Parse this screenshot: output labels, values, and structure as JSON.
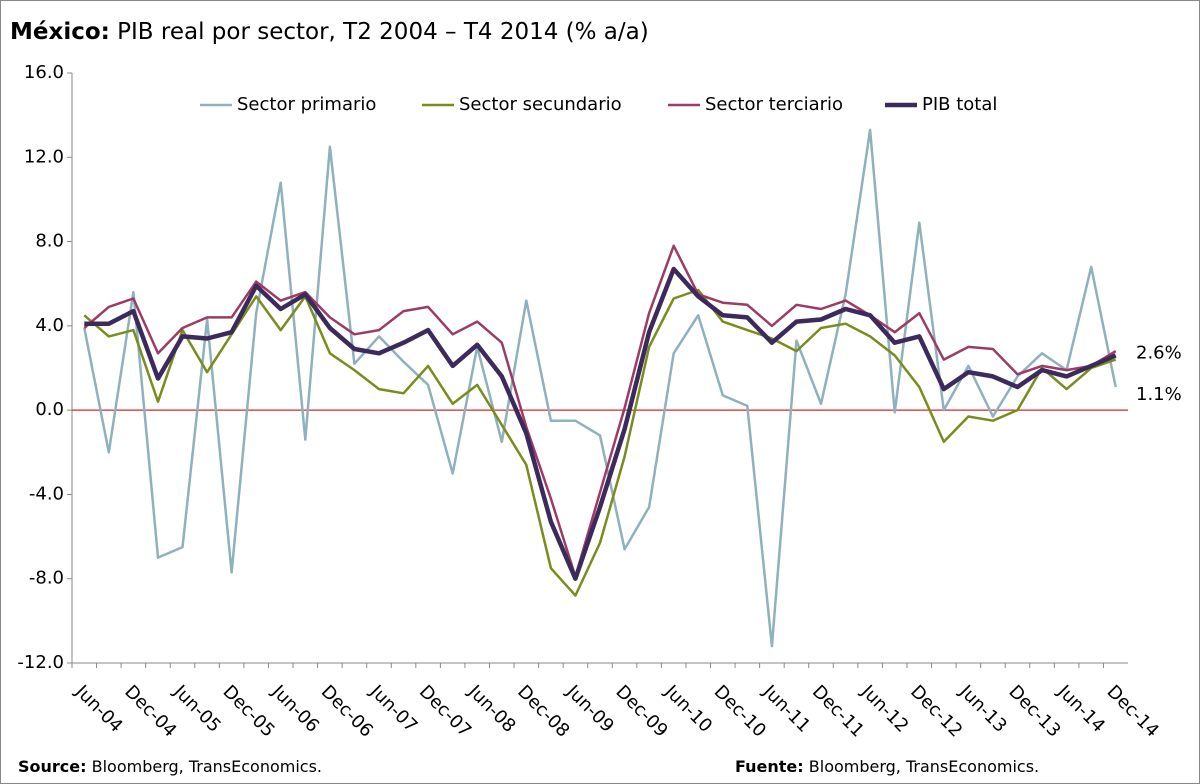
{
  "chart_data": {
    "type": "line",
    "title_prefix": "México:",
    "title": "PIB real por sector, T2 2004 – T4 2014 (% a/a)",
    "categories": [
      "Jun-04",
      null,
      "Dec-04",
      null,
      "Jun-05",
      null,
      "Dec-05",
      null,
      "Jun-06",
      null,
      "Dec-06",
      null,
      "Jun-07",
      null,
      "Dec-07",
      null,
      "Jun-08",
      null,
      "Dec-08",
      null,
      "Jun-09",
      null,
      "Dec-09",
      null,
      "Jun-10",
      null,
      "Dec-10",
      null,
      "Jun-11",
      null,
      "Dec-11",
      null,
      "Jun-12",
      null,
      "Dec-12",
      null,
      "Jun-13",
      null,
      "Dec-13",
      null,
      "Jun-14",
      null,
      "Dec-14"
    ],
    "series": [
      {
        "name": "Sector primario",
        "color": "#8fb1bd",
        "width": 2.5,
        "values": [
          3.9,
          -2.0,
          5.6,
          -7.0,
          -6.5,
          4.3,
          -7.7,
          4.6,
          10.8,
          -1.4,
          12.5,
          2.2,
          3.5,
          2.3,
          1.2,
          -3.0,
          3.0,
          -1.5,
          5.2,
          -0.5,
          -0.5,
          -1.2,
          -6.6,
          -4.6,
          2.7,
          4.5,
          0.7,
          0.2,
          -11.2,
          3.3,
          0.3,
          5.5,
          13.3,
          -0.1,
          8.9,
          0.0,
          2.1,
          -0.3,
          1.6,
          2.7,
          1.9,
          6.8,
          1.1
        ]
      },
      {
        "name": "Sector secundario",
        "color": "#7a8c1e",
        "width": 2.5,
        "values": [
          4.5,
          3.5,
          3.8,
          0.4,
          3.8,
          1.8,
          3.6,
          5.4,
          3.8,
          5.4,
          2.7,
          1.9,
          1.0,
          0.8,
          2.1,
          0.3,
          1.2,
          -0.7,
          -2.6,
          -7.5,
          -8.8,
          -6.3,
          -2.2,
          3.0,
          5.3,
          5.7,
          4.2,
          3.8,
          3.4,
          2.8,
          3.9,
          4.1,
          3.5,
          2.6,
          1.1,
          -1.5,
          -0.3,
          -0.5,
          0.0,
          2.0,
          1.0,
          2.0,
          2.4
        ]
      },
      {
        "name": "Sector terciario",
        "color": "#9c3b64",
        "width": 2.5,
        "values": [
          3.9,
          4.9,
          5.3,
          2.7,
          3.9,
          4.4,
          4.4,
          6.1,
          5.2,
          5.6,
          4.4,
          3.6,
          3.8,
          4.7,
          4.9,
          3.6,
          4.2,
          3.2,
          -0.8,
          -4.2,
          -7.9,
          -3.9,
          0.1,
          4.6,
          7.8,
          5.5,
          5.1,
          5.0,
          4.0,
          5.0,
          4.8,
          5.2,
          4.5,
          3.7,
          4.6,
          2.4,
          3.0,
          2.9,
          1.7,
          2.1,
          1.9,
          2.1,
          2.8
        ]
      },
      {
        "name": "PIB total",
        "color": "#3d2a5c",
        "width": 4.5,
        "values": [
          4.1,
          4.1,
          4.7,
          1.5,
          3.5,
          3.4,
          3.7,
          5.9,
          4.8,
          5.5,
          3.9,
          2.9,
          2.7,
          3.2,
          3.8,
          2.1,
          3.1,
          1.6,
          -1.1,
          -5.3,
          -8.0,
          -4.6,
          -0.9,
          3.7,
          6.7,
          5.4,
          4.5,
          4.4,
          3.2,
          4.2,
          4.3,
          4.8,
          4.5,
          3.2,
          3.5,
          1.0,
          1.8,
          1.6,
          1.1,
          1.9,
          1.6,
          2.1,
          2.6
        ]
      }
    ],
    "ylim": [
      -12,
      16
    ],
    "yticks": [
      {
        "value": -12,
        "label": "-12.0"
      },
      {
        "value": -8,
        "label": "-8.0"
      },
      {
        "value": -4,
        "label": "-4.0"
      },
      {
        "value": 0,
        "label": "0.0"
      },
      {
        "value": 4,
        "label": "4.0"
      },
      {
        "value": 8,
        "label": "8.0"
      },
      {
        "value": 12,
        "label": "12.0"
      },
      {
        "value": 16,
        "label": "16.0"
      }
    ],
    "zero_line_color": "#d62728",
    "legend": "top",
    "annotations": [
      {
        "text": "2.6%",
        "value": 2.6
      },
      {
        "text": "1.1%",
        "value": 1.1
      }
    ],
    "source": {
      "label": "Source:",
      "text": "Bloomberg, TransEconomics."
    },
    "fuente": {
      "label": "Fuente:",
      "text": "Bloomberg, TransEconomics."
    }
  }
}
